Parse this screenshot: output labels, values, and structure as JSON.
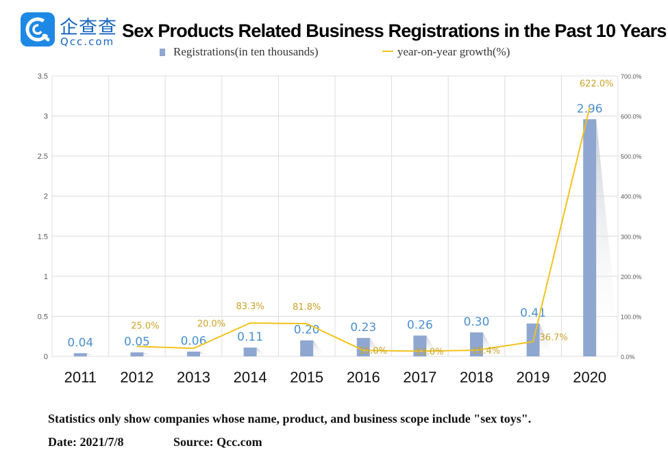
{
  "logo": {
    "cn": "企查查",
    "en": "Qcc.com"
  },
  "chart_data": {
    "type": "bar",
    "title": "Sex Products Related Business Registrations in the Past 10 Years",
    "categories": [
      "2011",
      "2012",
      "2013",
      "2014",
      "2015",
      "2016",
      "2017",
      "2018",
      "2019",
      "2020"
    ],
    "series": [
      {
        "name": "Registrations(in ten thousands)",
        "type": "bar",
        "axis": "left",
        "values": [
          0.04,
          0.05,
          0.06,
          0.11,
          0.2,
          0.23,
          0.26,
          0.3,
          0.41,
          2.96
        ],
        "labels": [
          "0.04",
          "0.05",
          "0.06",
          "0.11",
          "0.20",
          "0.23",
          "0.26",
          "0.30",
          "0.41",
          "2.96"
        ],
        "color": "#8fa7d0"
      },
      {
        "name": "year-on-year growth(%)",
        "type": "line",
        "axis": "right",
        "values": [
          null,
          25.0,
          20.0,
          83.3,
          81.8,
          15.0,
          13.0,
          15.4,
          36.7,
          622.0
        ],
        "labels": [
          "",
          "25.0%",
          "20.0%",
          "83.3%",
          "81.8%",
          "15.0%",
          "13.0%",
          "15.4%",
          "36.7%",
          "622.0%"
        ],
        "color": "#f2c21b"
      }
    ],
    "y_left": {
      "range": [
        0,
        3.5
      ],
      "ticks": [
        "0",
        "0.5",
        "1",
        "1.5",
        "2",
        "2.5",
        "3",
        "3.5"
      ]
    },
    "y_right": {
      "range": [
        0,
        700
      ],
      "ticks": [
        "0.0%",
        "100.0%",
        "200.0%",
        "300.0%",
        "400.0%",
        "500.0%",
        "600.0%",
        "700.0%"
      ]
    },
    "grid": true,
    "legend": "top",
    "label_color": "#4a8fd0",
    "line_label_color": "#c9a227"
  },
  "footer": {
    "note": "Statistics only show companies whose name, product, and business scope include \"sex toys\".",
    "date": "Date: 2021/7/8",
    "source": "Source: Qcc.com"
  }
}
